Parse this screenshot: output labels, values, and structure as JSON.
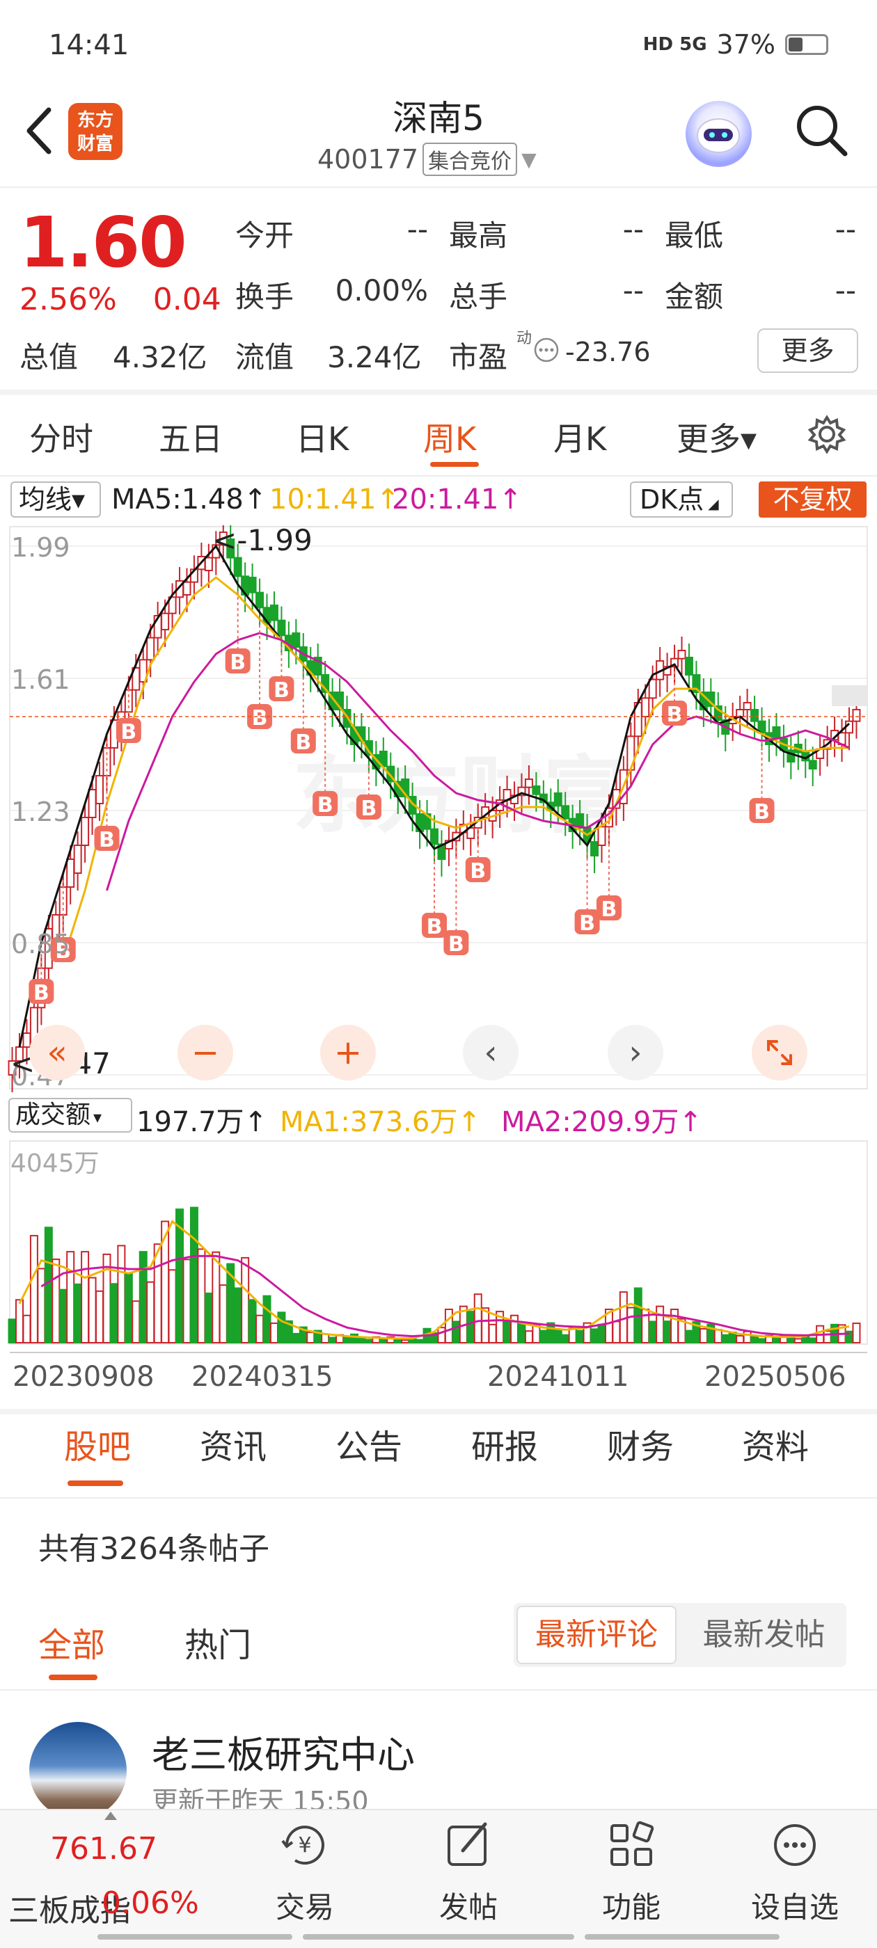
{
  "status": {
    "time": "14:41",
    "network": "HD 5G",
    "battery": "37%"
  },
  "header": {
    "logo_line1": "东方",
    "logo_line2": "财富",
    "title": "深南5",
    "code": "400177",
    "code_tag": "集合竞价"
  },
  "quote": {
    "price": "1.60",
    "change_pct": "2.56%",
    "change": "0.04",
    "rows": [
      {
        "l1": "今开",
        "v1": "--",
        "l2": "最高",
        "v2": "--",
        "l3": "最低",
        "v3": "--"
      },
      {
        "l1": "换手",
        "v1": "0.00%",
        "l2": "总手",
        "v2": "--",
        "l3": "金额",
        "v3": "--"
      }
    ],
    "total_cap_label": "总值",
    "total_cap": "4.32亿",
    "float_cap_label": "流值",
    "float_cap": "3.24亿",
    "pe_label": "市盈",
    "pe_sup": "动",
    "pe": "-23.76",
    "more": "更多"
  },
  "period_tabs": [
    "分时",
    "五日",
    "日K",
    "周K",
    "月K",
    "更多▾"
  ],
  "active_period": "周K",
  "kline": {
    "indicator": "均线▾",
    "ma5": "MA5:1.48↑",
    "ma10": "10:1.41↑",
    "ma20": "20:1.41↑",
    "dk": "DK点",
    "adjust": "不复权",
    "hi_label": "<-1.99",
    "lo_label": "<-0.47"
  },
  "volume": {
    "indicator": "成交额",
    "value": "197.7万↑",
    "ma1": "MA1:373.6万↑",
    "ma2": "MA2:209.9万↑",
    "axis_top": "4045万"
  },
  "colors": {
    "up": "#c8242a",
    "down": "#19a32b",
    "accent": "#e8541c",
    "ma5": "#111111",
    "ma10": "#f0b400",
    "ma20": "#cc1a9e"
  },
  "chart_data": {
    "type": "candlestick",
    "y_ticks": [
      "1.99",
      "1.61",
      "1.23",
      "0.85",
      "0.47"
    ],
    "x_ticks": [
      "20230908",
      "20240315",
      "20241011",
      "20250506"
    ],
    "ylim": [
      0.47,
      1.99
    ],
    "series_names": [
      "MA5",
      "10",
      "20"
    ],
    "ma5": [
      0.55,
      0.85,
      1.05,
      1.25,
      1.45,
      1.6,
      1.75,
      1.85,
      1.92,
      1.99,
      1.88,
      1.8,
      1.72,
      1.65,
      1.55,
      1.45,
      1.38,
      1.3,
      1.2,
      1.12,
      1.15,
      1.2,
      1.25,
      1.28,
      1.26,
      1.2,
      1.13,
      1.25,
      1.5,
      1.62,
      1.65,
      1.55,
      1.48,
      1.5,
      1.45,
      1.4,
      1.38,
      1.42,
      1.48
    ],
    "ma10": [
      null,
      null,
      0.8,
      1.0,
      1.25,
      1.45,
      1.65,
      1.75,
      1.85,
      1.9,
      1.85,
      1.78,
      1.72,
      1.65,
      1.58,
      1.5,
      1.4,
      1.33,
      1.25,
      1.2,
      1.18,
      1.2,
      1.22,
      1.24,
      1.24,
      1.2,
      1.16,
      1.2,
      1.35,
      1.52,
      1.58,
      1.58,
      1.52,
      1.48,
      1.45,
      1.42,
      1.4,
      1.41,
      1.41
    ],
    "ma20": [
      null,
      null,
      null,
      null,
      1.0,
      1.2,
      1.35,
      1.5,
      1.6,
      1.68,
      1.72,
      1.74,
      1.72,
      1.68,
      1.65,
      1.6,
      1.53,
      1.46,
      1.4,
      1.33,
      1.28,
      1.26,
      1.25,
      1.22,
      1.2,
      1.19,
      1.18,
      1.22,
      1.3,
      1.42,
      1.48,
      1.5,
      1.48,
      1.45,
      1.43,
      1.44,
      1.46,
      1.44,
      1.41
    ],
    "volume_ma1": [
      900,
      1900,
      1750,
      1500,
      1700,
      1600,
      1750,
      2800,
      2400,
      1900,
      1400,
      900,
      500,
      300,
      200,
      150,
      120,
      100,
      100,
      250,
      700,
      800,
      600,
      450,
      350,
      300,
      350,
      700,
      900,
      700,
      550,
      400,
      300,
      200,
      150,
      130,
      150,
      300,
      373.6
    ],
    "volume_ma2": [
      null,
      1300,
      1600,
      1700,
      1750,
      1700,
      1700,
      1900,
      2000,
      2000,
      1900,
      1600,
      1200,
      800,
      550,
      350,
      250,
      180,
      150,
      180,
      350,
      500,
      520,
      480,
      420,
      380,
      360,
      450,
      600,
      650,
      620,
      520,
      420,
      300,
      220,
      180,
      170,
      190,
      209.9
    ]
  },
  "content_tabs": [
    "股吧",
    "资讯",
    "公告",
    "研报",
    "财务",
    "资料"
  ],
  "post_count": "共有3264条帖子",
  "sub_tabs": [
    "全部",
    "热门"
  ],
  "sort_options": [
    "最新评论",
    "最新发帖"
  ],
  "post": {
    "author": "老三板研究中心",
    "updated": "更新于昨天 15:50"
  },
  "bottom": {
    "index_value": "761.67",
    "index_name": "三板成指",
    "index_pct": "0.06%",
    "items": [
      {
        "label": "交易",
        "icon": "trade-icon"
      },
      {
        "label": "发帖",
        "icon": "post-icon"
      },
      {
        "label": "功能",
        "icon": "grid-icon"
      },
      {
        "label": "设自选",
        "icon": "more-icon"
      }
    ]
  }
}
